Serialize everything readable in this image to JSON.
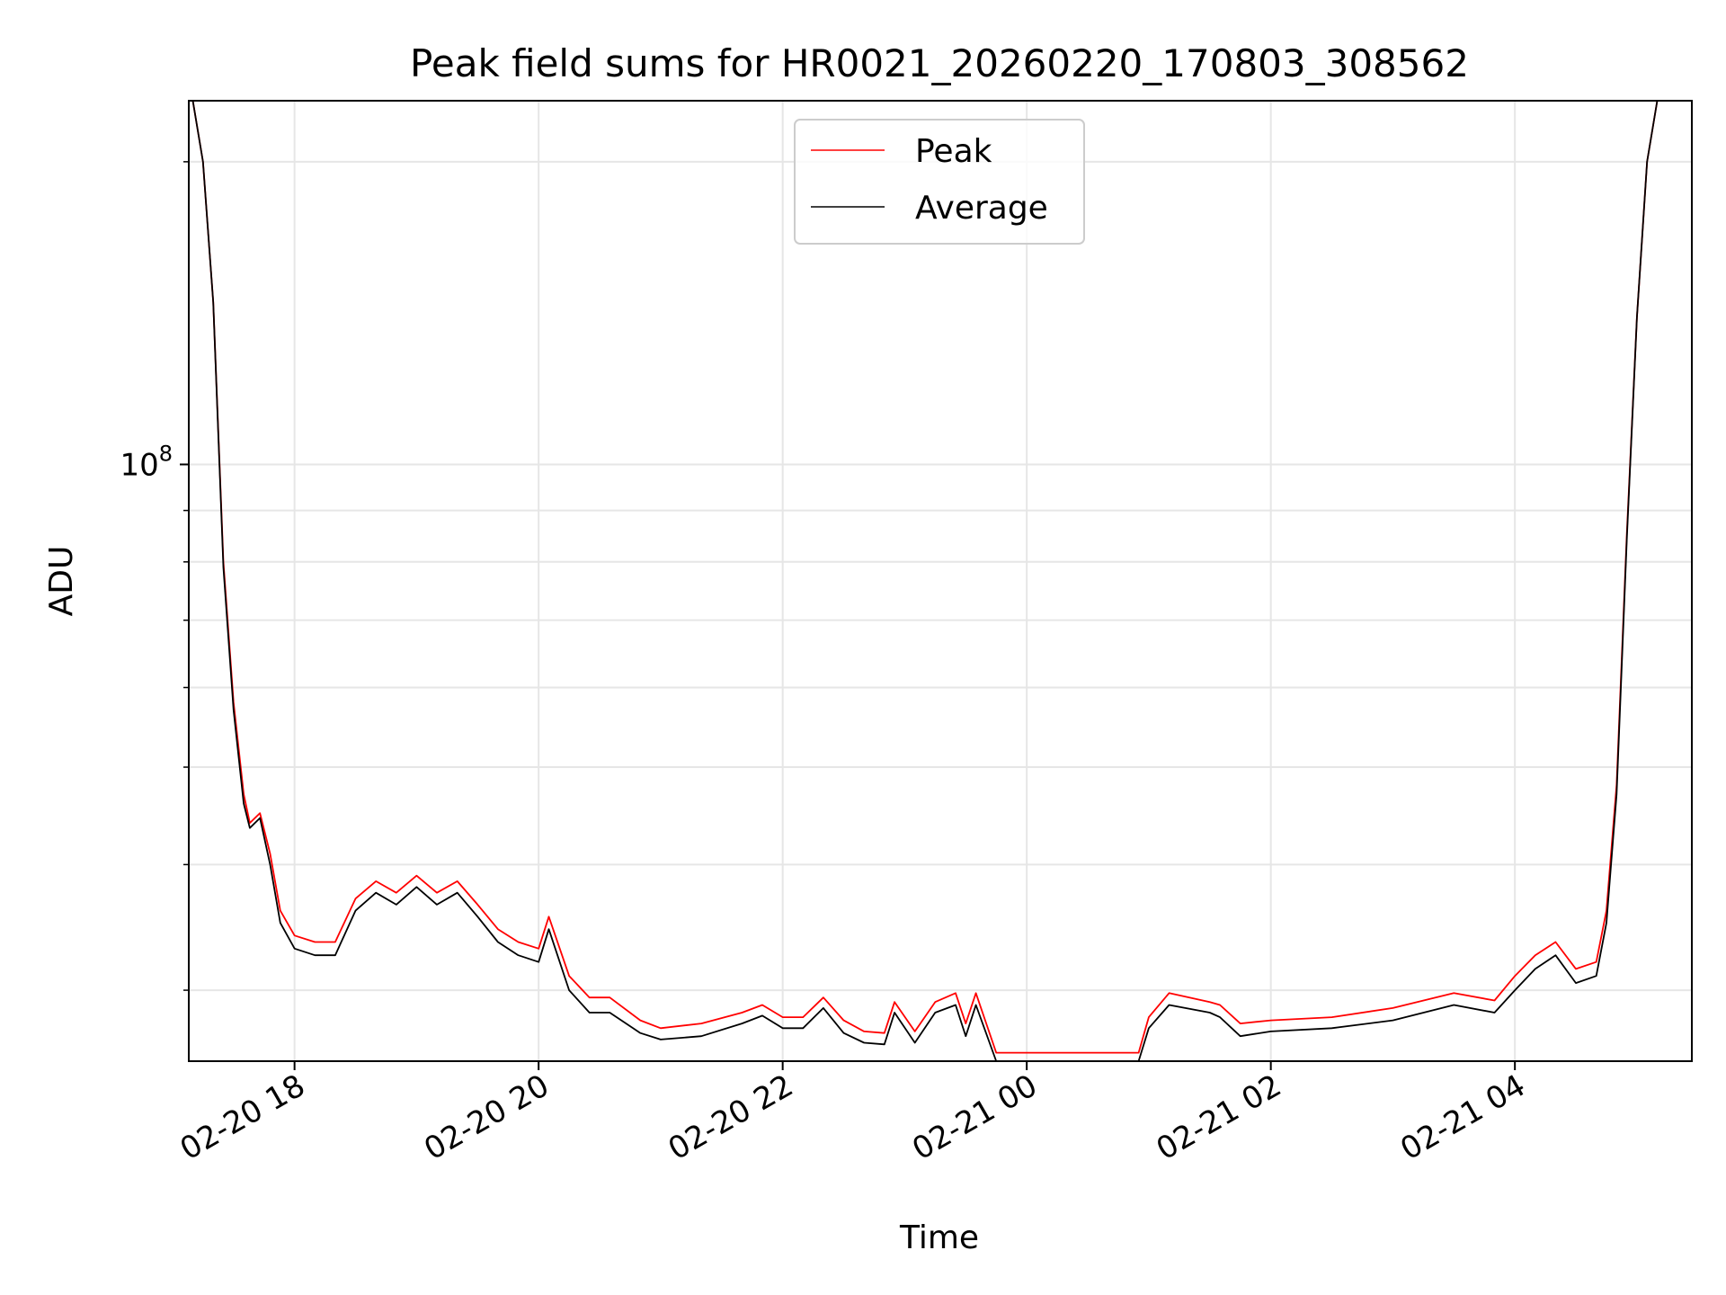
{
  "chart_data": {
    "type": "line",
    "title": "Peak field sums for HR0021_20260220_170803_308562",
    "xlabel": "Time",
    "ylabel": "ADU",
    "y_scale": "log",
    "ylim": [
      25500000.0,
      230000000.0
    ],
    "xlim": [
      "2026-02-20 17:08",
      "2026-02-21 05:27"
    ],
    "grid": true,
    "legend_position": "top-center",
    "x_ticks": [
      {
        "t": "2026-02-20 18:00",
        "label": "02-20 18"
      },
      {
        "t": "2026-02-20 20:00",
        "label": "02-20 20"
      },
      {
        "t": "2026-02-20 22:00",
        "label": "02-20 22"
      },
      {
        "t": "2026-02-21 00:00",
        "label": "02-21 00"
      },
      {
        "t": "2026-02-21 02:00",
        "label": "02-21 02"
      },
      {
        "t": "2026-02-21 04:00",
        "label": "02-21 04"
      }
    ],
    "y_major_tick": {
      "value": 100000000,
      "label_base": "10",
      "label_exp": "8"
    },
    "y_minor_ticks": [
      30000000,
      40000000,
      50000000,
      60000000,
      70000000,
      80000000,
      90000000,
      200000000
    ],
    "colors": {
      "peak": "#ff0000",
      "average": "#000000",
      "grid": "#e6e6e6"
    },
    "series": [
      {
        "name": "Peak",
        "color": "#ff0000",
        "points": [
          [
            "2026-02-20 17:10",
            230000000.0
          ],
          [
            "2026-02-20 17:15",
            200000000.0
          ],
          [
            "2026-02-20 17:20",
            145000000.0
          ],
          [
            "2026-02-20 17:25",
            80000000.0
          ],
          [
            "2026-02-20 17:30",
            58000000.0
          ],
          [
            "2026-02-20 17:35",
            47000000.0
          ],
          [
            "2026-02-20 17:38",
            44000000.0
          ],
          [
            "2026-02-20 17:43",
            45000000.0
          ],
          [
            "2026-02-20 17:48",
            41000000.0
          ],
          [
            "2026-02-20 17:53",
            36000000.0
          ],
          [
            "2026-02-20 18:00",
            34000000.0
          ],
          [
            "2026-02-20 18:10",
            33500000.0
          ],
          [
            "2026-02-20 18:20",
            33500000.0
          ],
          [
            "2026-02-20 18:30",
            37000000.0
          ],
          [
            "2026-02-20 18:40",
            38500000.0
          ],
          [
            "2026-02-20 18:50",
            37500000.0
          ],
          [
            "2026-02-20 19:00",
            39000000.0
          ],
          [
            "2026-02-20 19:10",
            37500000.0
          ],
          [
            "2026-02-20 19:20",
            38500000.0
          ],
          [
            "2026-02-20 19:30",
            36500000.0
          ],
          [
            "2026-02-20 19:40",
            34500000.0
          ],
          [
            "2026-02-20 19:50",
            33500000.0
          ],
          [
            "2026-02-20 20:00",
            33000000.0
          ],
          [
            "2026-02-20 20:05",
            35500000.0
          ],
          [
            "2026-02-20 20:15",
            31000000.0
          ],
          [
            "2026-02-20 20:25",
            29500000.0
          ],
          [
            "2026-02-20 20:35",
            29500000.0
          ],
          [
            "2026-02-20 20:50",
            28000000.0
          ],
          [
            "2026-02-20 21:00",
            27500000.0
          ],
          [
            "2026-02-20 21:20",
            27800000.0
          ],
          [
            "2026-02-20 21:40",
            28500000.0
          ],
          [
            "2026-02-20 21:50",
            29000000.0
          ],
          [
            "2026-02-20 22:00",
            28200000.0
          ],
          [
            "2026-02-20 22:10",
            28200000.0
          ],
          [
            "2026-02-20 22:20",
            29500000.0
          ],
          [
            "2026-02-20 22:30",
            28000000.0
          ],
          [
            "2026-02-20 22:40",
            27300000.0
          ],
          [
            "2026-02-20 22:50",
            27200000.0
          ],
          [
            "2026-02-20 22:55",
            29200000.0
          ],
          [
            "2026-02-20 23:05",
            27300000.0
          ],
          [
            "2026-02-20 23:15",
            29200000.0
          ],
          [
            "2026-02-20 23:25",
            29800000.0
          ],
          [
            "2026-02-20 23:30",
            27800000.0
          ],
          [
            "2026-02-20 23:35",
            29800000.0
          ],
          [
            "2026-02-20 23:45",
            26000000.0
          ],
          [
            "2026-02-21 00:00",
            26000000.0
          ],
          [
            "2026-02-21 00:30",
            26000000.0
          ],
          [
            "2026-02-21 00:55",
            26000000.0
          ],
          [
            "2026-02-21 01:00",
            28200000.0
          ],
          [
            "2026-02-21 01:10",
            29800000.0
          ],
          [
            "2026-02-21 01:30",
            29200000.0
          ],
          [
            "2026-02-21 01:35",
            29000000.0
          ],
          [
            "2026-02-21 01:45",
            27800000.0
          ],
          [
            "2026-02-21 02:00",
            28000000.0
          ],
          [
            "2026-02-21 02:30",
            28200000.0
          ],
          [
            "2026-02-21 03:00",
            28800000.0
          ],
          [
            "2026-02-21 03:30",
            29800000.0
          ],
          [
            "2026-02-21 03:50",
            29300000.0
          ],
          [
            "2026-02-21 04:00",
            31000000.0
          ],
          [
            "2026-02-21 04:10",
            32500000.0
          ],
          [
            "2026-02-21 04:20",
            33500000.0
          ],
          [
            "2026-02-21 04:30",
            31500000.0
          ],
          [
            "2026-02-21 04:40",
            32000000.0
          ],
          [
            "2026-02-21 04:45",
            36000000.0
          ],
          [
            "2026-02-21 04:50",
            48000000.0
          ],
          [
            "2026-02-21 04:55",
            85000000.0
          ],
          [
            "2026-02-21 05:00",
            140000000.0
          ],
          [
            "2026-02-21 05:05",
            200000000.0
          ],
          [
            "2026-02-21 05:10",
            230000000.0
          ]
        ]
      },
      {
        "name": "Average",
        "color": "#000000",
        "points": [
          [
            "2026-02-20 17:10",
            230000000.0
          ],
          [
            "2026-02-20 17:15",
            200000000.0
          ],
          [
            "2026-02-20 17:20",
            145000000.0
          ],
          [
            "2026-02-20 17:25",
            79000000.0
          ],
          [
            "2026-02-20 17:30",
            57000000.0
          ],
          [
            "2026-02-20 17:35",
            46000000.0
          ],
          [
            "2026-02-20 17:38",
            43500000.0
          ],
          [
            "2026-02-20 17:43",
            44500000.0
          ],
          [
            "2026-02-20 17:48",
            40000000.0
          ],
          [
            "2026-02-20 17:53",
            35000000.0
          ],
          [
            "2026-02-20 18:00",
            33000000.0
          ],
          [
            "2026-02-20 18:10",
            32500000.0
          ],
          [
            "2026-02-20 18:20",
            32500000.0
          ],
          [
            "2026-02-20 18:30",
            36000000.0
          ],
          [
            "2026-02-20 18:40",
            37500000.0
          ],
          [
            "2026-02-20 18:50",
            36500000.0
          ],
          [
            "2026-02-20 19:00",
            38000000.0
          ],
          [
            "2026-02-20 19:10",
            36500000.0
          ],
          [
            "2026-02-20 19:20",
            37500000.0
          ],
          [
            "2026-02-20 19:30",
            35500000.0
          ],
          [
            "2026-02-20 19:40",
            33500000.0
          ],
          [
            "2026-02-20 19:50",
            32500000.0
          ],
          [
            "2026-02-20 20:00",
            32000000.0
          ],
          [
            "2026-02-20 20:05",
            34500000.0
          ],
          [
            "2026-02-20 20:15",
            30000000.0
          ],
          [
            "2026-02-20 20:25",
            28500000.0
          ],
          [
            "2026-02-20 20:35",
            28500000.0
          ],
          [
            "2026-02-20 20:50",
            27200000.0
          ],
          [
            "2026-02-20 21:00",
            26800000.0
          ],
          [
            "2026-02-20 21:20",
            27000000.0
          ],
          [
            "2026-02-20 21:40",
            27800000.0
          ],
          [
            "2026-02-20 21:50",
            28300000.0
          ],
          [
            "2026-02-20 22:00",
            27500000.0
          ],
          [
            "2026-02-20 22:10",
            27500000.0
          ],
          [
            "2026-02-20 22:20",
            28800000.0
          ],
          [
            "2026-02-20 22:30",
            27200000.0
          ],
          [
            "2026-02-20 22:40",
            26600000.0
          ],
          [
            "2026-02-20 22:50",
            26500000.0
          ],
          [
            "2026-02-20 22:55",
            28500000.0
          ],
          [
            "2026-02-20 23:05",
            26600000.0
          ],
          [
            "2026-02-20 23:15",
            28500000.0
          ],
          [
            "2026-02-20 23:25",
            29000000.0
          ],
          [
            "2026-02-20 23:30",
            27000000.0
          ],
          [
            "2026-02-20 23:35",
            29000000.0
          ],
          [
            "2026-02-20 23:45",
            25500000.0
          ],
          [
            "2026-02-21 00:00",
            25500000.0
          ],
          [
            "2026-02-21 00:30",
            25500000.0
          ],
          [
            "2026-02-21 00:55",
            25500000.0
          ],
          [
            "2026-02-21 01:00",
            27500000.0
          ],
          [
            "2026-02-21 01:10",
            29000000.0
          ],
          [
            "2026-02-21 01:30",
            28500000.0
          ],
          [
            "2026-02-21 01:35",
            28200000.0
          ],
          [
            "2026-02-21 01:45",
            27000000.0
          ],
          [
            "2026-02-21 02:00",
            27300000.0
          ],
          [
            "2026-02-21 02:30",
            27500000.0
          ],
          [
            "2026-02-21 03:00",
            28000000.0
          ],
          [
            "2026-02-21 03:30",
            29000000.0
          ],
          [
            "2026-02-21 03:50",
            28500000.0
          ],
          [
            "2026-02-21 04:00",
            30000000.0
          ],
          [
            "2026-02-21 04:10",
            31500000.0
          ],
          [
            "2026-02-21 04:20",
            32500000.0
          ],
          [
            "2026-02-21 04:30",
            30500000.0
          ],
          [
            "2026-02-21 04:40",
            31000000.0
          ],
          [
            "2026-02-21 04:45",
            35000000.0
          ],
          [
            "2026-02-21 04:50",
            47000000.0
          ],
          [
            "2026-02-21 04:55",
            84000000.0
          ],
          [
            "2026-02-21 05:00",
            140000000.0
          ],
          [
            "2026-02-21 05:05",
            200000000.0
          ],
          [
            "2026-02-21 05:10",
            230000000.0
          ]
        ]
      }
    ]
  }
}
